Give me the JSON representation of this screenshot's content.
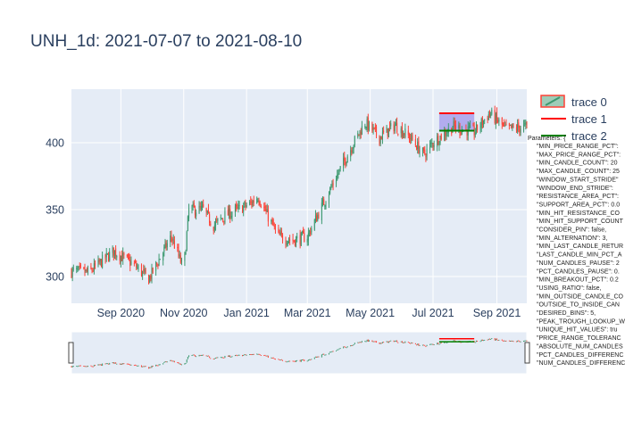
{
  "chart_data": {
    "type": "candlestick",
    "title": "UNH_1d: 2021-07-07 to 2021-08-10",
    "xlabel": "",
    "ylabel": "",
    "x_range": [
      "2020-07-15",
      "2021-09-30"
    ],
    "ylim": [
      280,
      440
    ],
    "x_ticks": [
      {
        "date": "2020-09-01",
        "label": "Sep 2020"
      },
      {
        "date": "2020-11-01",
        "label": "Nov 2020"
      },
      {
        "date": "2021-01-01",
        "label": "Jan 2021"
      },
      {
        "date": "2021-03-01",
        "label": "Mar 2021"
      },
      {
        "date": "2021-05-01",
        "label": "May 2021"
      },
      {
        "date": "2021-07-01",
        "label": "Jul 2021"
      },
      {
        "date": "2021-09-01",
        "label": "Sep 2021"
      }
    ],
    "y_ticks": [
      300,
      350,
      400
    ],
    "grid": true,
    "legend_position": "top-right",
    "colors": {
      "increasing": "#3D9970",
      "decreasing": "#FF4136",
      "resistance": "#FF0000",
      "support": "#008000",
      "highlight": "#8878E8",
      "plot_bg": "#E5ECF6",
      "title": "#2A3F5F",
      "grid": "#FFFFFF"
    },
    "price_anchors": [
      [
        "2020-07-15",
        304
      ],
      [
        "2020-08-01",
        303
      ],
      [
        "2020-08-25",
        319
      ],
      [
        "2020-09-15",
        308
      ],
      [
        "2020-09-28",
        298
      ],
      [
        "2020-10-20",
        330
      ],
      [
        "2020-11-01",
        305
      ],
      [
        "2020-11-06",
        350
      ],
      [
        "2020-11-20",
        350
      ],
      [
        "2020-11-30",
        338
      ],
      [
        "2020-12-10",
        345
      ],
      [
        "2021-01-06",
        355
      ],
      [
        "2021-01-12",
        360
      ],
      [
        "2021-01-25",
        340
      ],
      [
        "2021-02-01",
        330
      ],
      [
        "2021-02-15",
        327
      ],
      [
        "2021-03-01",
        330
      ],
      [
        "2021-03-25",
        368
      ],
      [
        "2021-04-15",
        400
      ],
      [
        "2021-04-26",
        415
      ],
      [
        "2021-05-10",
        404
      ],
      [
        "2021-05-25",
        413
      ],
      [
        "2021-06-10",
        403
      ],
      [
        "2021-06-22",
        391
      ],
      [
        "2021-07-01",
        400
      ],
      [
        "2021-07-20",
        412
      ],
      [
        "2021-08-10",
        408
      ],
      [
        "2021-08-25",
        422
      ],
      [
        "2021-09-10",
        410
      ],
      [
        "2021-09-30",
        412
      ]
    ],
    "series": [
      {
        "name": "trace 0",
        "kind": "candlestick",
        "legend_symbol": "box"
      },
      {
        "name": "trace 1",
        "kind": "line",
        "legend_symbol": "line",
        "y": 422,
        "x_start": "2021-07-07",
        "x_end": "2021-08-10"
      },
      {
        "name": "trace 2",
        "kind": "line",
        "legend_symbol": "line",
        "y": 409,
        "x_start": "2021-07-07",
        "x_end": "2021-08-10"
      }
    ],
    "highlight_window": {
      "x_start": "2021-07-07",
      "x_end": "2021-08-10",
      "y_low": 409,
      "y_high": 422
    },
    "annotation": {
      "header": "Parameters: {",
      "lines": [
        "\"MIN_PRICE_RANGE_PCT\":",
        "\"MAX_PRICE_RANGE_PCT\":",
        "\"MIN_CANDLE_COUNT\": 20",
        "\"MAX_CANDLE_COUNT\": 25",
        "\"WINDOW_START_STRIDE\"",
        "\"WINDOW_END_STRIDE\":",
        "\"RESISTANCE_AREA_PCT\":",
        "\"SUPPORT_AREA_PCT\": 0.0",
        "\"MIN_HIT_RESISTANCE_CO",
        "\"MIN_HIT_SUPPORT_COUNT",
        "\"CONSIDER_PIN\": false,",
        "\"MIN_ALTERNATION\": 3,",
        "\"MIN_LAST_CANDLE_RETUR",
        "\"LAST_CANDLE_MIN_PCT_A",
        "\"NUM_CANDLES_PAUSE\": 2",
        "\"PCT_CANDLES_PAUSE\": 0.",
        "\"MIN_BREAKOUT_PCT\": 0.2",
        "\"USING_RATIO\": false,",
        "\"MIN_OUTSIDE_CANDLE_CO",
        "\"OUTSIDE_TO_INSIDE_CAN",
        "\"DESIRED_BINS\": 5,",
        "\"PEAK_TROUGH_LOOKUP_W",
        "\"UNIQUE_HIT_VALUES\": tru",
        "\"PRICE_RANGE_TOLERANC",
        "\"ABSOLUTE_NUM_CANDLES",
        "\"PCT_CANDLES_DIFFERENC",
        "\"NUM_CANDLES_DIFFERENC"
      ]
    },
    "rangeslider": true
  }
}
